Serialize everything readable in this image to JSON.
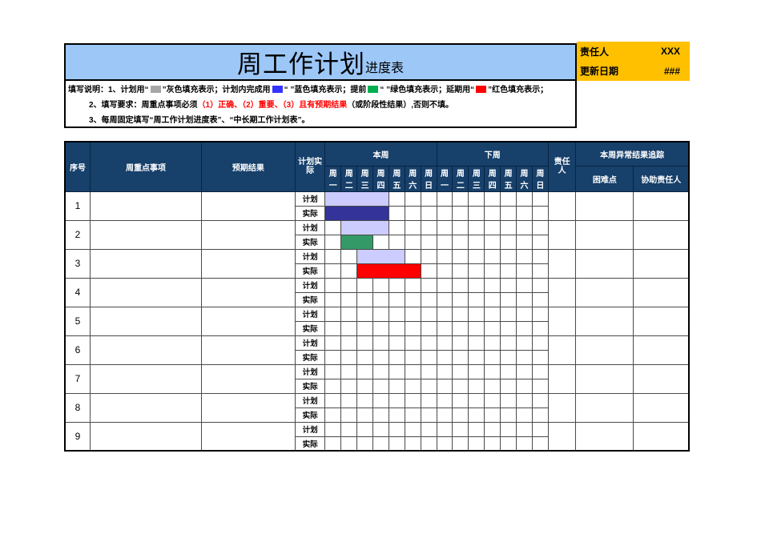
{
  "title": {
    "main": "周工作计划",
    "suffix": "进度表"
  },
  "info": {
    "rows": [
      {
        "label": "责任人",
        "value": "XXX"
      },
      {
        "label": "更新日期",
        "value": "###"
      }
    ]
  },
  "instructions": {
    "line1": [
      {
        "t": "填写说明：1、计划用“"
      },
      {
        "sw": "#A6A6A6"
      },
      {
        "t": "”灰色填充表示；计划内完成用"
      },
      {
        "sw": "#3333FF"
      },
      {
        "t": "“ ”蓝色填充表示；提前"
      },
      {
        "sw": "#00B050"
      },
      {
        "t": "“ ”绿色填充表示；延期用“"
      },
      {
        "sw": "#FF0000"
      },
      {
        "t": "”红色填充表示；"
      }
    ],
    "line2": [
      {
        "t": "2、填写要求：周重点事项必须"
      },
      {
        "t": "（1）正确、（2）重要、（3）且有预期结果",
        "red": true
      },
      {
        "t": "（或阶段性结果）,否则不填。"
      }
    ],
    "line3": "3、每周固定填写“周工作计划进度表”、“中长期工作计划表”。"
  },
  "table": {
    "headers": {
      "index": "序号",
      "item": "周重点事项",
      "expected": "预期结果",
      "plan_actual": "计划实际",
      "this_week": "本周",
      "next_week": "下周",
      "owner": "责任人",
      "tracking": "本周异常结果追踪",
      "difficulty": "困难点",
      "assist": "协助责任人"
    },
    "day_labels": [
      "周一",
      "周二",
      "周三",
      "周四",
      "周五",
      "周六",
      "周日"
    ],
    "row_labels": {
      "plan": "计划",
      "actual": "实际"
    },
    "rows": [
      {
        "no": "1",
        "plan_bar": {
          "start": 1,
          "end": 4,
          "color": "#CCCCFF"
        },
        "actual_bar": {
          "start": 1,
          "end": 4,
          "color": "#333399"
        }
      },
      {
        "no": "2",
        "plan_bar": {
          "start": 2,
          "end": 4,
          "color": "#CCCCFF"
        },
        "actual_bar": {
          "start": 2,
          "end": 3,
          "color": "#339966"
        }
      },
      {
        "no": "3",
        "plan_bar": {
          "start": 3,
          "end": 5,
          "color": "#CCCCFF"
        },
        "actual_bar": {
          "start": 3,
          "end": 6,
          "color": "#FF0000"
        }
      },
      {
        "no": "4",
        "plan_bar": null,
        "actual_bar": null
      },
      {
        "no": "5",
        "plan_bar": null,
        "actual_bar": null
      },
      {
        "no": "6",
        "plan_bar": null,
        "actual_bar": null
      },
      {
        "no": "7",
        "plan_bar": null,
        "actual_bar": null
      },
      {
        "no": "8",
        "plan_bar": null,
        "actual_bar": null
      },
      {
        "no": "9",
        "plan_bar": null,
        "actual_bar": null
      }
    ]
  },
  "colors": {
    "header_bg": "#17406B",
    "title_bg": "#9CC7F7",
    "info_bg": "#FFC000",
    "plan_bar": "#CCCCFF",
    "done_bar": "#333399",
    "early_bar": "#339966",
    "late_bar": "#FF0000"
  }
}
